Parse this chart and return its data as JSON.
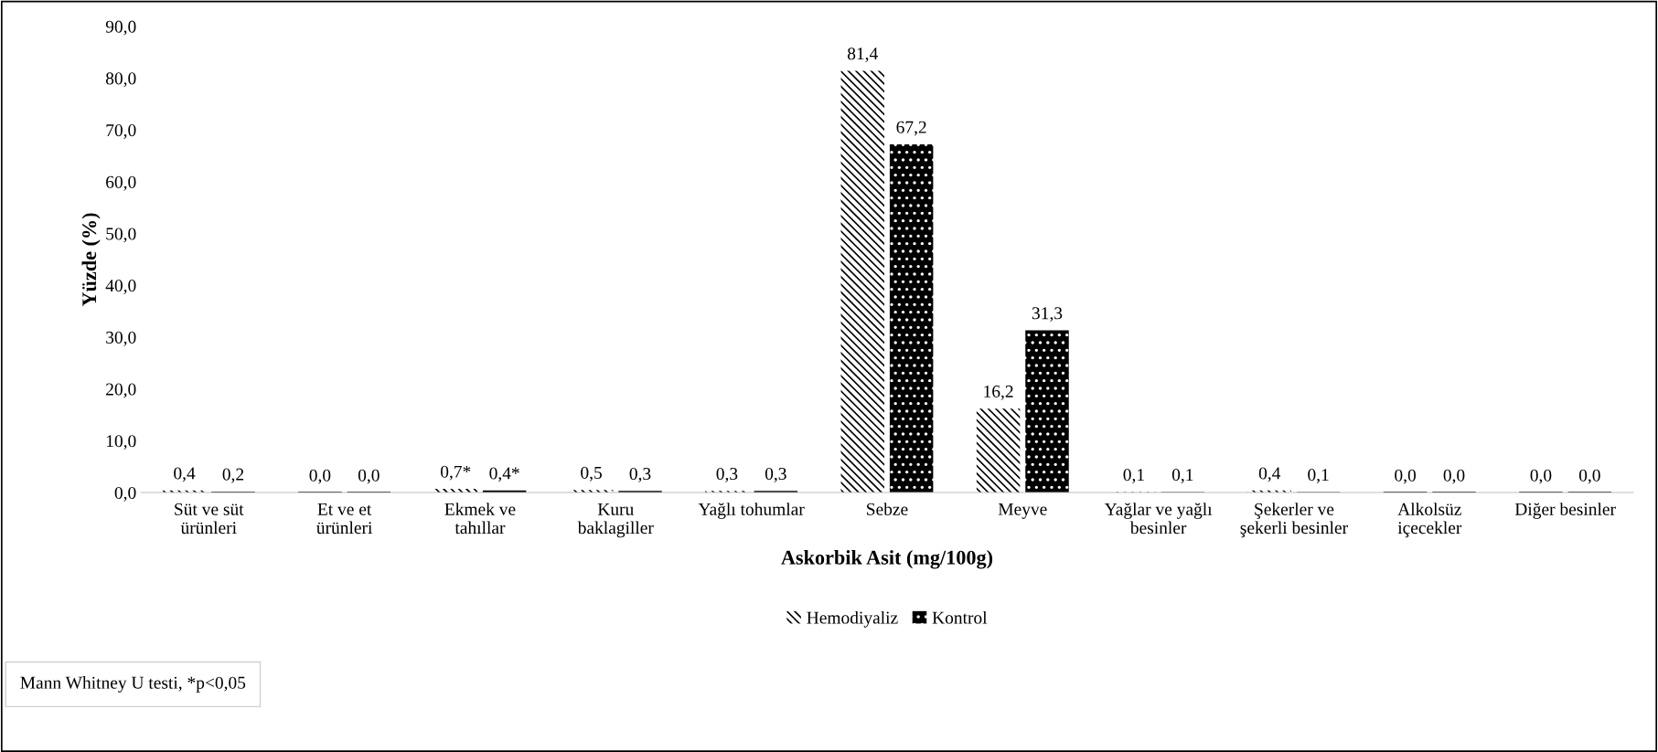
{
  "chart_data": {
    "type": "bar",
    "categories": [
      "Süt ve süt\nürünleri",
      "Et ve et\nürünleri",
      "Ekmek ve\ntahıllar",
      "Kuru\nbaklagiller",
      "Yağlı tohumlar",
      "Sebze",
      "Meyve",
      "Yağlar ve yağlı\nbesinler",
      "Şekerler ve\nşekerli besinler",
      "Alkolsüz\niçecekler",
      "Diğer besinler"
    ],
    "series": [
      {
        "name": "Hemodiyaliz",
        "color": "#000000",
        "values": [
          0.4,
          0.0,
          0.7,
          0.5,
          0.3,
          81.4,
          16.2,
          0.1,
          0.4,
          0.0,
          0.0
        ],
        "value_labels": [
          "0,4",
          "0,0",
          "0,7*",
          "0,5",
          "0,3",
          "81,4",
          "16,2",
          "0,1",
          "0,4",
          "0,0",
          "0,0"
        ]
      },
      {
        "name": "Kontrol",
        "color": "#000000",
        "values": [
          0.2,
          0.0,
          0.4,
          0.3,
          0.3,
          67.2,
          31.3,
          0.1,
          0.1,
          0.0,
          0.0
        ],
        "value_labels": [
          "0,2",
          "0,0",
          "0,4*",
          "0,3",
          "0,3",
          "67,2",
          "31,3",
          "0,1",
          "0,1",
          "0,0",
          "0,0"
        ]
      }
    ],
    "xlabel": "Askorbik Asit (mg/100g)",
    "ylabel": "Yüzde (%)",
    "ylim": [
      0,
      90
    ],
    "yticks": [
      {
        "value": 0,
        "label": "0,0"
      },
      {
        "value": 10,
        "label": "10,0"
      },
      {
        "value": 20,
        "label": "20,0"
      },
      {
        "value": 30,
        "label": "30,0"
      },
      {
        "value": 40,
        "label": "40,0"
      },
      {
        "value": 50,
        "label": "50,0"
      },
      {
        "value": 60,
        "label": "60,0"
      },
      {
        "value": 70,
        "label": "70,0"
      },
      {
        "value": 80,
        "label": "80,0"
      },
      {
        "value": 90,
        "label": "90,0"
      }
    ],
    "annotations": [
      "Mann Whitney U testi, *p<0,05"
    ],
    "grid": false,
    "legend": "bottom"
  }
}
